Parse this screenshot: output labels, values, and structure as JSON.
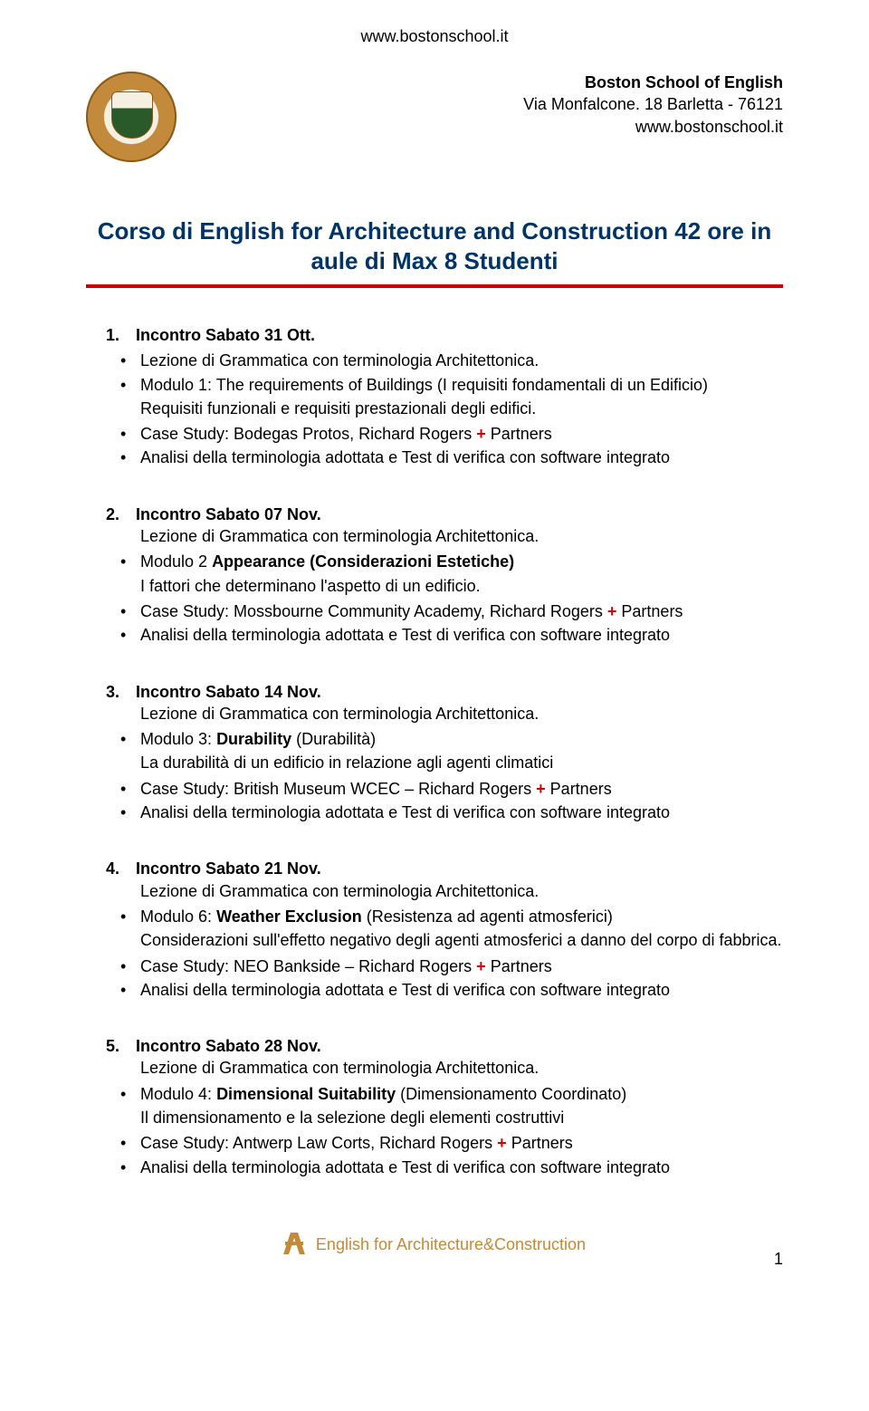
{
  "header": {
    "top_url": "www.bostonschool.it",
    "org_name": "Boston School of English",
    "address_line": "Via Monfalcone. 18 Barletta - 76121",
    "org_url": "www.bostonschool.it"
  },
  "title": {
    "line1": "Corso di English for Architecture and Construction 42 ore in",
    "line2": "aule di Max 8 Studenti"
  },
  "common": {
    "lezione": "Lezione di Grammatica con terminologia Architettonica.",
    "analisi": "Analisi della terminologia adottata e Test di verifica con software integrato",
    "partners_suffix": " Partners",
    "plus": "+"
  },
  "sections": [
    {
      "num": "1.",
      "title": "Incontro Sabato 31 Ott.",
      "mod_line": "Modulo 1: The requirements of Buildings (I requisiti fondamentali di un Edificio)",
      "mod_cont": "Requisiti funzionali e requisiti prestazionali degli edifici.",
      "case_prefix": "Case Study: Bodegas Protos, Richard Rogers "
    },
    {
      "num": "2.",
      "title": "Incontro Sabato 07 Nov.",
      "mod_pre": "Modulo 2 ",
      "mod_bold": "Appearance (Considerazioni Estetiche)",
      "mod_cont": "I fattori che determinano l'aspetto di un edificio.",
      "case_prefix": "Case Study: Mossbourne Community Academy, Richard Rogers "
    },
    {
      "num": "3.",
      "title": "Incontro Sabato 14 Nov.",
      "mod_pre": "Modulo 3: ",
      "mod_bold": "Durability",
      "mod_post": " (Durabilità)",
      "mod_cont": "La durabilità di un edificio in relazione agli agenti climatici",
      "case_prefix": "Case Study: British Museum WCEC – Richard Rogers "
    },
    {
      "num": "4.",
      "title": "Incontro Sabato 21 Nov.",
      "mod_pre": "Modulo 6: ",
      "mod_bold": "Weather Exclusion",
      "mod_post": " (Resistenza ad agenti atmosferici)",
      "mod_cont": "Considerazioni sull'effetto negativo degli agenti atmosferici a danno del corpo di fabbrica.",
      "case_prefix": "Case Study: NEO Bankside – Richard Rogers "
    },
    {
      "num": "5.",
      "title": "Incontro Sabato 28 Nov.",
      "mod_pre": "Modulo 4: ",
      "mod_bold": "Dimensional Suitability",
      "mod_post": " (Dimensionamento Coordinato)",
      "mod_cont": "Il dimensionamento e la selezione degli elementi costruttivi",
      "case_prefix": "Case Study: Antwerp Law Corts, Richard Rogers "
    }
  ],
  "footer": {
    "text": "English for Architecture&Construction",
    "pagenum": "1"
  },
  "colors": {
    "title": "#003366",
    "rule": "#cc0000",
    "accent": "#c28a3a"
  }
}
